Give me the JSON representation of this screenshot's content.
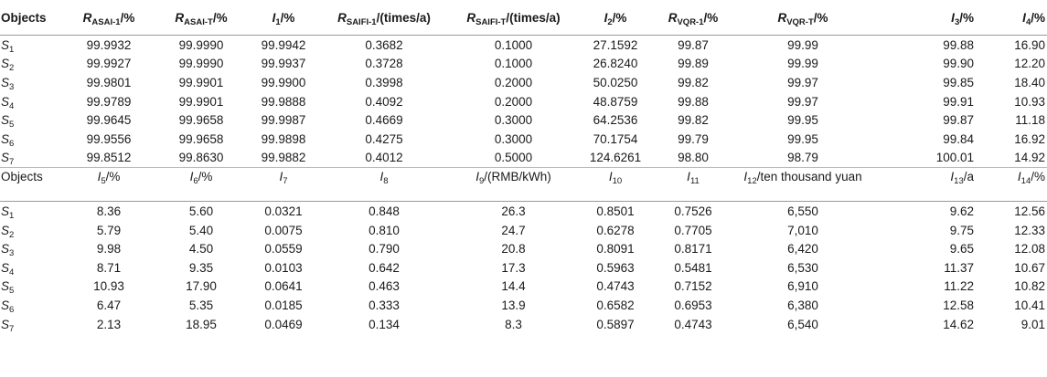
{
  "table1": {
    "headers": [
      {
        "sym": "R",
        "sub": "ASAI-1",
        "unit": "/%"
      },
      {
        "sym": "R",
        "sub": "ASAI-T",
        "unit": "/%"
      },
      {
        "sym": "I",
        "sub": "1",
        "unit": "/%"
      },
      {
        "sym": "R",
        "sub": "SAIFI-1",
        "unit": "/(times/a)"
      },
      {
        "sym": "R",
        "sub": "SAIFI-T",
        "unit": "/(times/a)"
      },
      {
        "sym": "I",
        "sub": "2",
        "unit": "/%"
      },
      {
        "sym": "R",
        "sub": "VQR-1",
        "unit": "/%"
      },
      {
        "sym": "R",
        "sub": "VQR-T",
        "unit": "/%"
      },
      {
        "sym": "I",
        "sub": "3",
        "unit": "/%"
      },
      {
        "sym": "I",
        "sub": "4",
        "unit": "/%"
      }
    ],
    "first_header": "Objects",
    "rows": [
      {
        "obj": "S",
        "sub": "1",
        "vals": [
          "99.9932",
          "99.9990",
          "99.9942",
          "0.3682",
          "0.1000",
          "27.1592",
          "99.87",
          "99.99",
          "99.88",
          "16.90"
        ]
      },
      {
        "obj": "S",
        "sub": "2",
        "vals": [
          "99.9927",
          "99.9990",
          "99.9937",
          "0.3728",
          "0.1000",
          "26.8240",
          "99.89",
          "99.99",
          "99.90",
          "12.20"
        ]
      },
      {
        "obj": "S",
        "sub": "3",
        "vals": [
          "99.9801",
          "99.9901",
          "99.9900",
          "0.3998",
          "0.2000",
          "50.0250",
          "99.82",
          "99.97",
          "99.85",
          "18.40"
        ]
      },
      {
        "obj": "S",
        "sub": "4",
        "vals": [
          "99.9789",
          "99.9901",
          "99.9888",
          "0.4092",
          "0.2000",
          "48.8759",
          "99.88",
          "99.97",
          "99.91",
          "10.93"
        ]
      },
      {
        "obj": "S",
        "sub": "5",
        "vals": [
          "99.9645",
          "99.9658",
          "99.9987",
          "0.4669",
          "0.3000",
          "64.2536",
          "99.82",
          "99.95",
          "99.87",
          "11.18"
        ]
      },
      {
        "obj": "S",
        "sub": "6",
        "vals": [
          "99.9556",
          "99.9658",
          "99.9898",
          "0.4275",
          "0.3000",
          "70.1754",
          "99.79",
          "99.95",
          "99.84",
          "16.92"
        ]
      },
      {
        "obj": "S",
        "sub": "7",
        "vals": [
          "99.8512",
          "99.8630",
          "99.9882",
          "0.4012",
          "0.5000",
          "124.6261",
          "98.80",
          "98.79",
          "100.01",
          "14.92"
        ]
      }
    ]
  },
  "table2": {
    "first_header": "Objects",
    "headers": [
      {
        "sym": "I",
        "sub": "5",
        "unit": "/%"
      },
      {
        "sym": "I",
        "sub": "6",
        "unit": "/%"
      },
      {
        "sym": "I",
        "sub": "7",
        "unit": ""
      },
      {
        "sym": "I",
        "sub": "8",
        "unit": ""
      },
      {
        "sym": "I",
        "sub": "9",
        "unit": "/(RMB/kWh)"
      },
      {
        "sym": "I",
        "sub": "10",
        "unit": ""
      },
      {
        "sym": "I",
        "sub": "11",
        "unit": ""
      },
      {
        "sym": "I",
        "sub": "12",
        "unit": "/ten thousand yuan"
      },
      {
        "sym": "I",
        "sub": "13",
        "unit": "/a"
      },
      {
        "sym": "I",
        "sub": "14",
        "unit": "/%"
      }
    ],
    "rows": [
      {
        "obj": "S",
        "sub": "1",
        "vals": [
          "8.36",
          "5.60",
          "0.0321",
          "0.848",
          "26.3",
          "0.8501",
          "0.7526",
          "6,550",
          "9.62",
          "12.56"
        ]
      },
      {
        "obj": "S",
        "sub": "2",
        "vals": [
          "5.79",
          "5.40",
          "0.0075",
          "0.810",
          "24.7",
          "0.6278",
          "0.7705",
          "7,010",
          "9.75",
          "12.33"
        ]
      },
      {
        "obj": "S",
        "sub": "3",
        "vals": [
          "9.98",
          "4.50",
          "0.0559",
          "0.790",
          "20.8",
          "0.8091",
          "0.8171",
          "6,420",
          "9.65",
          "12.08"
        ]
      },
      {
        "obj": "S",
        "sub": "4",
        "vals": [
          "8.71",
          "9.35",
          "0.0103",
          "0.642",
          "17.3",
          "0.5963",
          "0.5481",
          "6,530",
          "11.37",
          "10.67"
        ]
      },
      {
        "obj": "S",
        "sub": "5",
        "vals": [
          "10.93",
          "17.90",
          "0.0641",
          "0.463",
          "14.4",
          "0.4743",
          "0.7152",
          "6,910",
          "11.22",
          "10.82"
        ]
      },
      {
        "obj": "S",
        "sub": "6",
        "vals": [
          "6.47",
          "5.35",
          "0.0185",
          "0.333",
          "13.9",
          "0.6582",
          "0.6953",
          "6,380",
          "12.58",
          "10.41"
        ]
      },
      {
        "obj": "S",
        "sub": "7",
        "vals": [
          "2.13",
          "18.95",
          "0.0469",
          "0.134",
          "8.3",
          "0.5897",
          "0.4743",
          "6,540",
          "14.62",
          "9.01"
        ]
      }
    ]
  }
}
